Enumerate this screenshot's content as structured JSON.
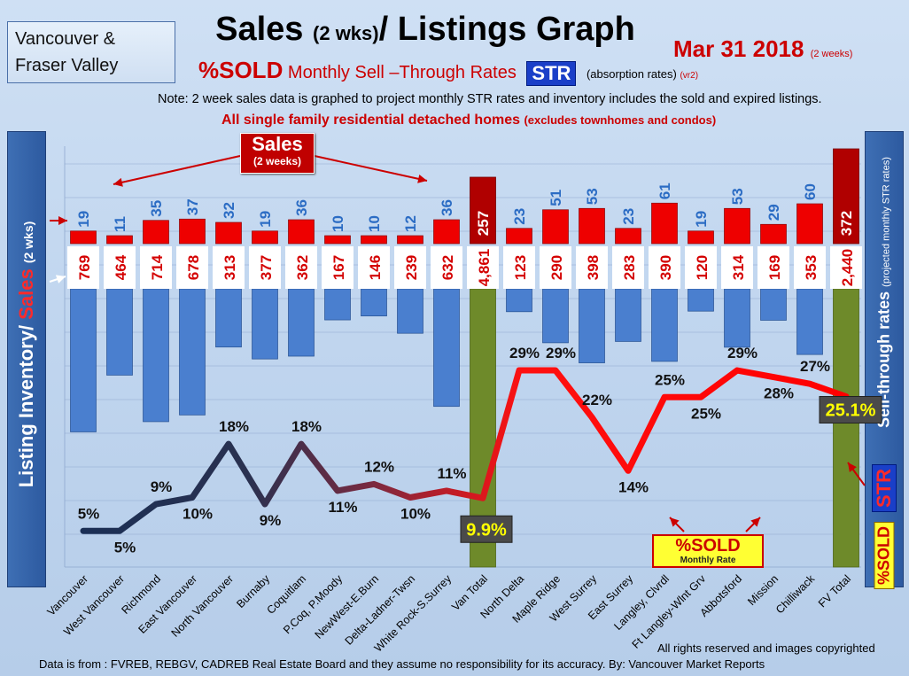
{
  "header": {
    "region_line1": "Vancouver &",
    "region_line2": "Fraser Valley",
    "title_a": "Sales",
    "title_b": "(2 wks)",
    "title_c": "/ Listings Graph",
    "date": "Mar 31  2018",
    "date_small": "(2 weeks)",
    "subtitle_sold": "%SOLD",
    "subtitle_text": "Monthly Sell –Through Rates",
    "str_label": "STR",
    "absorption": "(absorption rates)",
    "version": "(vr2)",
    "note": "Note: 2 week sales data is graphed to project monthly STR rates and inventory includes the sold and expired listings.",
    "family": "All single family residential detached homes",
    "family_small": "(excludes townhomes and condos)"
  },
  "side": {
    "left_a": "Listing Inventory/",
    "left_b": "Sales",
    "left_c": "(2 wks)",
    "right_a": "Sell-through rates",
    "right_b": "(projected monthly STR rates)",
    "str": "STR",
    "sold": "%SOLD"
  },
  "callouts": {
    "sales_l1": "Sales",
    "sales_l2": "(2 weeks)",
    "sold_l1": "%SOLD",
    "sold_l2": "Monthly Rate"
  },
  "footer": {
    "rights": "All rights reserved and  images copyrighted",
    "source": "Data is from : FVREB, REBGV, CADREB Real Estate Board and they assume  no responsibility for its accuracy.  By:  Vancouver Market Reports"
  },
  "colors": {
    "sales": "#ee0000",
    "sales_total": "#b00000",
    "inventory": "#4a7fcf",
    "total_bar": "#6e8a2a",
    "str_low": "#1b2f55",
    "str_high": "#ff0000",
    "label_blue": "#2b6cc4",
    "label_red": "#d40000"
  },
  "chart_data": {
    "type": "bar",
    "categories": [
      "Vancouver",
      "West Vancouver",
      "Richmond",
      "East Vancouver",
      "North Vancouver",
      "Burnaby",
      "Coquitlam",
      "P.Coq, P.Moody",
      "NewWest-E.Burn",
      "Delta-Ladner-Twsn",
      "White Rock-S.Surrey",
      "Van Total",
      "North Delta",
      "Maple Ridge",
      "West Surrey",
      "East Surrey",
      "Langley, Clvrdl",
      "Ft Langley-Wlnt Grv",
      "Abbotsford",
      "Mission",
      "Chilliwack",
      "FV Total"
    ],
    "totals": [
      "Van Total",
      "FV Total"
    ],
    "series": [
      {
        "name": "Sales (2 weeks)",
        "values": [
          19,
          11,
          35,
          37,
          32,
          19,
          36,
          10,
          10,
          12,
          36,
          257,
          23,
          51,
          53,
          23,
          61,
          19,
          53,
          29,
          60,
          372
        ],
        "labels": [
          "19",
          "11",
          "35",
          "37",
          "32",
          "19",
          "36",
          "10",
          "10",
          "12",
          "36",
          "257",
          "23",
          "51",
          "53",
          "23",
          "61",
          "19",
          "53",
          "29",
          "60",
          "372"
        ]
      },
      {
        "name": "Listing Inventory",
        "values": [
          769,
          464,
          714,
          678,
          313,
          377,
          362,
          167,
          146,
          239,
          632,
          4861,
          123,
          290,
          398,
          283,
          390,
          120,
          314,
          169,
          353,
          2440
        ],
        "labels": [
          "769",
          "464",
          "714",
          "678",
          "313",
          "377",
          "362",
          "167",
          "146",
          "239",
          "632",
          "4,861",
          "123",
          "290",
          "398",
          "283",
          "390",
          "120",
          "314",
          "169",
          "353",
          "2,440"
        ]
      },
      {
        "name": "%SOLD Monthly Rate",
        "values": [
          5,
          5,
          9,
          10,
          18,
          9,
          18,
          11,
          12,
          10,
          11,
          9.9,
          29,
          29,
          22,
          14,
          25,
          25,
          29,
          28,
          27,
          25.1
        ],
        "labels": [
          "5%",
          "5%",
          "9%",
          "10%",
          "18%",
          "9%",
          "18%",
          "11%",
          "12%",
          "10%",
          "11%",
          "9.9%",
          "29%",
          "29%",
          "22%",
          "14%",
          "25%",
          "25%",
          "29%",
          "28%",
          "27%",
          "25.1%"
        ]
      }
    ],
    "y_rates_range": [
      0,
      35
    ],
    "grid": true,
    "legend": "none"
  }
}
